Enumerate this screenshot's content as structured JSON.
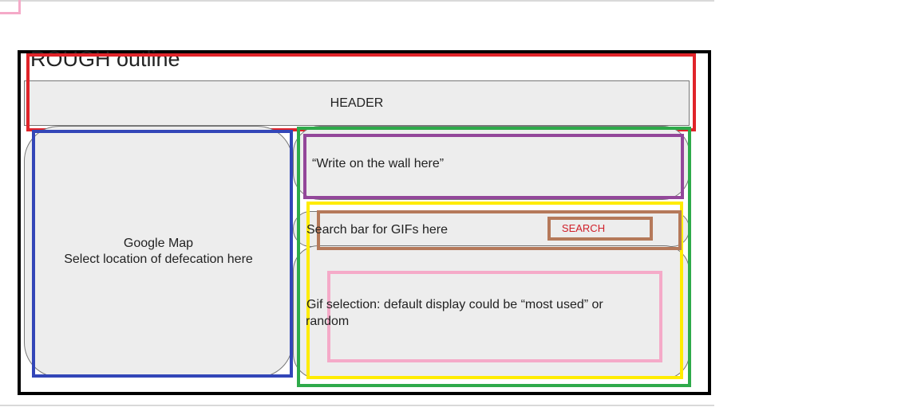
{
  "diagram": {
    "title": "ROUGH outline",
    "header_label": "HEADER",
    "map": {
      "line1": "Google Map",
      "line2": "Select location of defecation here"
    },
    "wall_prompt": "“Write on the wall here”",
    "search_bar_label": "Search bar for GIFs here",
    "search_button_label": "SEARCH",
    "gif_selection": {
      "line1": "Gif selection: default display could be “most used” or",
      "line2": "random"
    }
  },
  "colors": {
    "outer": "#000000",
    "header_box": "#e0242a",
    "map_box": "#3346b8",
    "right_panel": "#2eaa4a",
    "wall_box": "#93479a",
    "gif_area": "#ffec00",
    "search_box": "#b5795a",
    "search_button_text": "#d0202a",
    "selection_box": "#f5aac8"
  }
}
